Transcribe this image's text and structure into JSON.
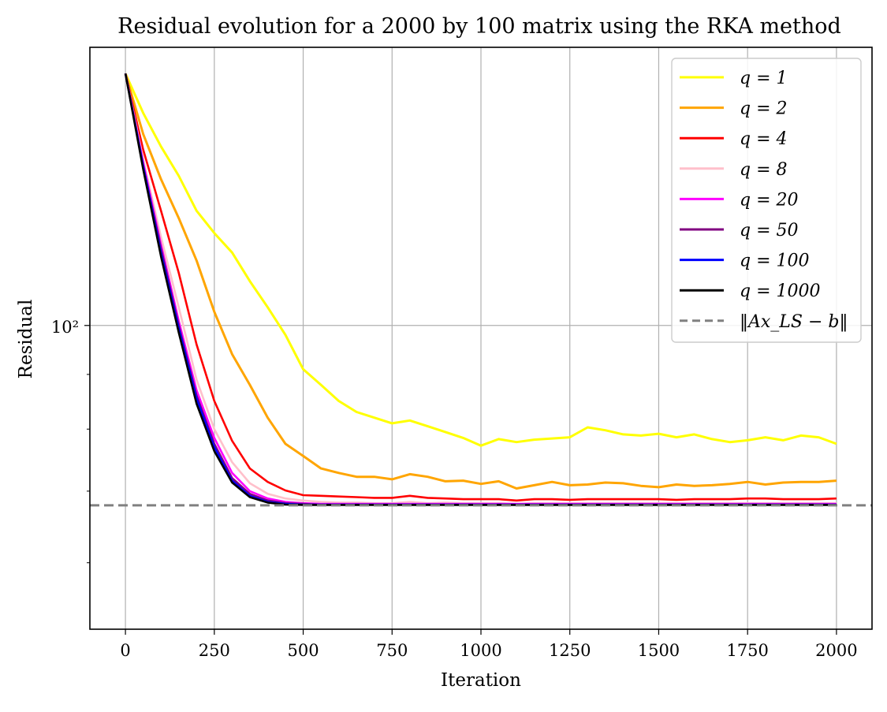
{
  "chart_data": {
    "type": "line",
    "title": "Residual evolution for a 2000 by 100 matrix using the RKA method",
    "xlabel": "Iteration",
    "ylabel": "Residual",
    "yscale": "log",
    "xlim": [
      -100,
      2100
    ],
    "ylim": [
      52,
      182
    ],
    "grid": true,
    "legend_position": "upper right",
    "x_ticks": [
      0,
      250,
      500,
      750,
      1000,
      1250,
      1500,
      1750,
      2000
    ],
    "x_tick_labels": [
      "0",
      "250",
      "500",
      "750",
      "1000",
      "1250",
      "1500",
      "1750",
      "2000"
    ],
    "y_ticks_major": [
      100
    ],
    "y_tick_labels_major": [
      "10²"
    ],
    "y_ticks_minor": [
      60,
      70,
      80,
      90,
      200
    ],
    "x": [
      0,
      50,
      100,
      150,
      200,
      250,
      300,
      350,
      400,
      450,
      500,
      550,
      600,
      650,
      700,
      750,
      800,
      850,
      900,
      950,
      1000,
      1050,
      1100,
      1150,
      1200,
      1250,
      1300,
      1350,
      1400,
      1450,
      1500,
      1550,
      1600,
      1650,
      1700,
      1750,
      1800,
      1850,
      1900,
      1950,
      2000
    ],
    "series": [
      {
        "name": "q = 1",
        "color": "#ffff00",
        "style": "solid",
        "values": [
          172,
          158,
          147,
          138,
          128,
          122,
          117,
          110,
          104,
          98,
          91,
          88,
          85,
          83,
          82,
          81,
          81.5,
          80.5,
          79.5,
          78.5,
          77.2,
          78.3,
          77.8,
          78.2,
          78.4,
          78.6,
          80.3,
          79.8,
          79.1,
          78.9,
          79.2,
          78.6,
          79.1,
          78.3,
          77.8,
          78.1,
          78.6,
          78.1,
          78.9,
          78.6,
          77.5
        ]
      },
      {
        "name": "q = 2",
        "color": "#ffa500",
        "style": "solid",
        "values": [
          172,
          151,
          137,
          126,
          115,
          103,
          94,
          88,
          82,
          77.5,
          75.5,
          73.5,
          72.8,
          72.2,
          72.2,
          71.8,
          72.6,
          72.2,
          71.5,
          71.6,
          71.1,
          71.5,
          70.4,
          70.9,
          71.4,
          70.9,
          71.0,
          71.3,
          71.2,
          70.8,
          70.6,
          71.0,
          70.8,
          70.9,
          71.1,
          71.4,
          71.0,
          71.3,
          71.4,
          71.4,
          71.6
        ]
      },
      {
        "name": "q = 4",
        "color": "#ff0000",
        "style": "solid",
        "values": [
          172,
          146,
          128,
          112,
          96,
          85,
          78,
          73.5,
          71.4,
          70.1,
          69.4,
          69.3,
          69.2,
          69.1,
          69.0,
          69.0,
          69.3,
          69.0,
          68.9,
          68.8,
          68.8,
          68.8,
          68.6,
          68.8,
          68.8,
          68.7,
          68.8,
          68.8,
          68.8,
          68.8,
          68.8,
          68.7,
          68.8,
          68.8,
          68.8,
          68.9,
          68.9,
          68.8,
          68.8,
          68.8,
          68.9
        ]
      },
      {
        "name": "q = 8",
        "color": "#ffc0cb",
        "style": "solid",
        "values": [
          172,
          143,
          121,
          104,
          89,
          80,
          74.5,
          71.2,
          69.6,
          68.9,
          68.6,
          68.4,
          68.3,
          68.3,
          68.2,
          68.2,
          68.4,
          68.2,
          68.3,
          68.2,
          68.2,
          68.2,
          68.1,
          68.2,
          68.2,
          68.2,
          68.2,
          68.2,
          68.2,
          68.2,
          68.2,
          68.2,
          68.2,
          68.2,
          68.2,
          68.2,
          68.2,
          68.2,
          68.2,
          68.2,
          68.2
        ]
      },
      {
        "name": "q = 20",
        "color": "#ff00ff",
        "style": "solid",
        "values": [
          172,
          142,
          119,
          101,
          87,
          78.5,
          72.8,
          70.0,
          68.9,
          68.4,
          68.2,
          68.1,
          68.1,
          68.1,
          68.1,
          68.1,
          68.1,
          68.1,
          68.1,
          68.1,
          68.1,
          68.1,
          68.1,
          68.1,
          68.1,
          68.1,
          68.1,
          68.1,
          68.1,
          68.1,
          68.1,
          68.1,
          68.1,
          68.1,
          68.1,
          68.1,
          68.1,
          68.1,
          68.1,
          68.1,
          68.1
        ]
      },
      {
        "name": "q = 50",
        "color": "#800080",
        "style": "solid",
        "values": [
          172,
          141,
          118,
          100,
          86,
          77.5,
          72.0,
          69.6,
          68.6,
          68.2,
          68.1,
          68.0,
          68.0,
          68.0,
          68.0,
          68.0,
          68.0,
          68.0,
          68.0,
          68.0,
          68.0,
          68.0,
          68.0,
          68.0,
          68.0,
          68.0,
          68.0,
          68.0,
          68.0,
          68.0,
          68.0,
          68.0,
          68.0,
          68.0,
          68.0,
          68.0,
          68.0,
          68.0,
          68.0,
          68.0,
          68.0
        ]
      },
      {
        "name": "q = 100",
        "color": "#0000ff",
        "style": "solid",
        "values": [
          172,
          141,
          117,
          99.5,
          85.5,
          77.0,
          71.6,
          69.3,
          68.4,
          68.1,
          68.0,
          68.0,
          68.0,
          68.0,
          68.0,
          68.0,
          68.0,
          68.0,
          68.0,
          68.0,
          68.0,
          68.0,
          68.0,
          68.0,
          68.0,
          68.0,
          68.0,
          68.0,
          68.0,
          68.0,
          68.0,
          68.0,
          68.0,
          68.0,
          68.0,
          68.0,
          68.0,
          68.0,
          68.0,
          68.0,
          68.0
        ]
      },
      {
        "name": "q = 1000",
        "color": "#000000",
        "style": "solid",
        "values": [
          172,
          140,
          116,
          98.5,
          84.5,
          76.3,
          71.3,
          69.1,
          68.3,
          68.0,
          67.95,
          67.95,
          67.95,
          67.95,
          67.95,
          67.95,
          67.95,
          67.95,
          67.95,
          67.95,
          67.95,
          67.95,
          67.95,
          67.95,
          67.95,
          67.95,
          67.95,
          67.95,
          67.95,
          67.95,
          67.95,
          67.95,
          67.95,
          67.95,
          67.95,
          67.95,
          67.95,
          67.95,
          67.95,
          67.95,
          67.95
        ]
      },
      {
        "name": "‖Ax_LS − b‖",
        "color": "#808080",
        "style": "dashed",
        "constant": 67.9
      }
    ],
    "legend_entries": [
      {
        "label": "q = 1",
        "color": "#ffff00",
        "style": "solid"
      },
      {
        "label": "q = 2",
        "color": "#ffa500",
        "style": "solid"
      },
      {
        "label": "q = 4",
        "color": "#ff0000",
        "style": "solid"
      },
      {
        "label": "q = 8",
        "color": "#ffc0cb",
        "style": "solid"
      },
      {
        "label": "q = 20",
        "color": "#ff00ff",
        "style": "solid"
      },
      {
        "label": "q = 50",
        "color": "#800080",
        "style": "solid"
      },
      {
        "label": "q = 100",
        "color": "#0000ff",
        "style": "solid"
      },
      {
        "label": "q = 1000",
        "color": "#000000",
        "style": "solid"
      },
      {
        "label": "‖Ax_LS − b‖",
        "color": "#808080",
        "style": "dashed"
      }
    ]
  }
}
